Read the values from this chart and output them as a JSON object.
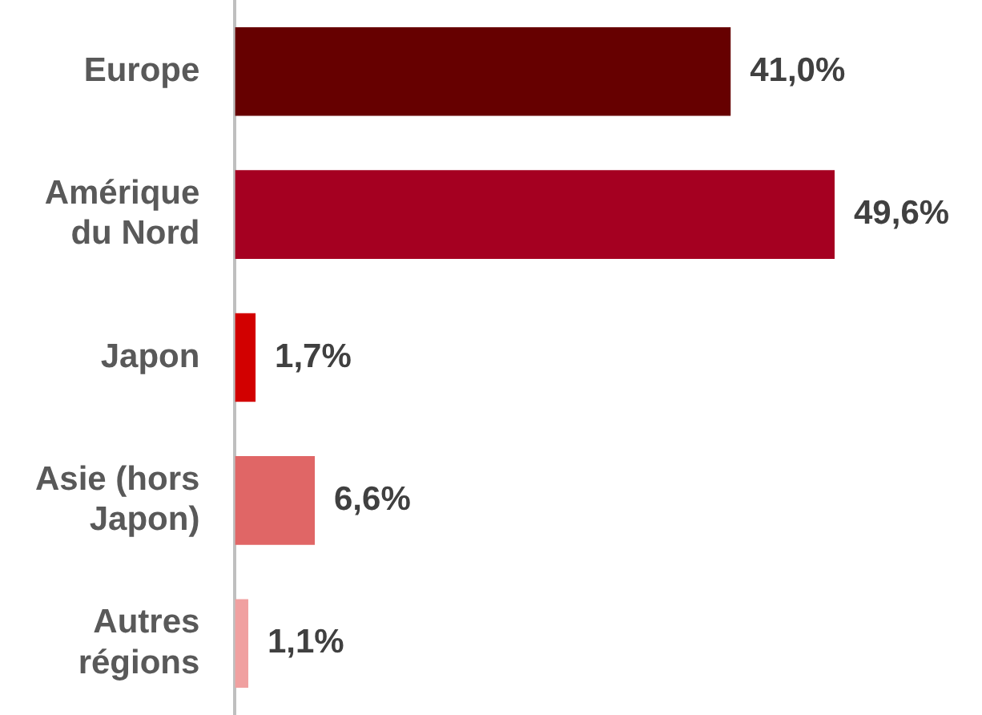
{
  "chart_data": {
    "type": "bar",
    "orientation": "horizontal",
    "categories": [
      "Europe",
      "Amérique du Nord",
      "Japon",
      "Asie (hors Japon)",
      "Autres régions"
    ],
    "values": [
      41.0,
      49.6,
      1.7,
      6.6,
      1.1
    ],
    "colors": [
      "#660000",
      "#a50021",
      "#d20000",
      "#e06666",
      "#f0a0a0"
    ],
    "value_labels": [
      "41,0%",
      "49,6%",
      "1,7%",
      "6,6%",
      "1,1%"
    ],
    "legend": false,
    "tick_labels": "y"
  }
}
